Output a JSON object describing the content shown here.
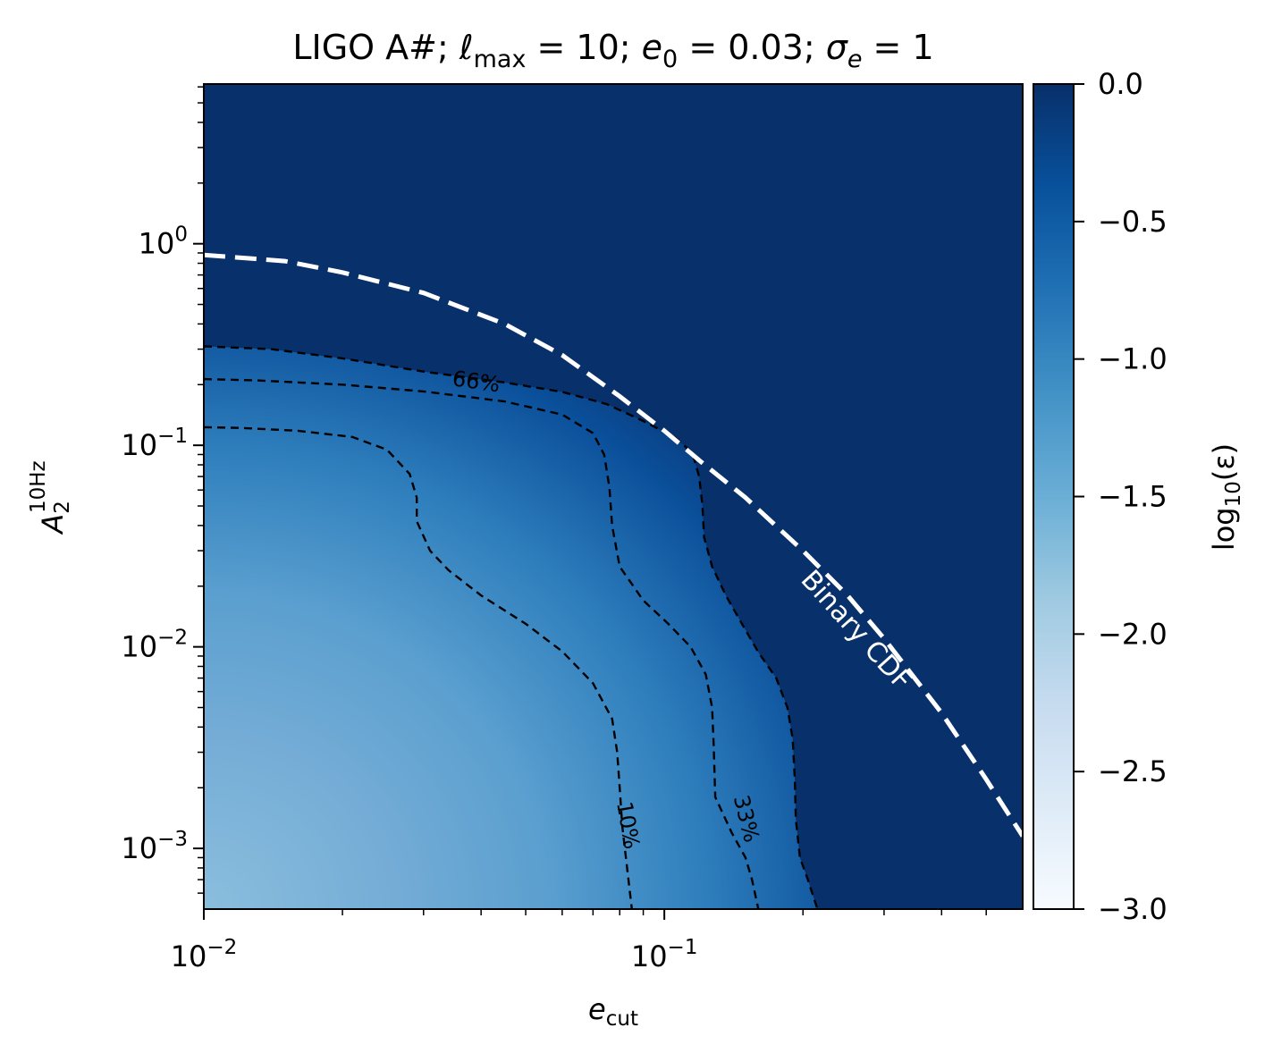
{
  "chart_data": {
    "type": "heatmap",
    "title": {
      "prefix": "LIGO A#; ",
      "ell": "ℓ",
      "lmax_sub": "max",
      "lmax_val": " = 10; ",
      "e": "e",
      "e0_sub": "0",
      "e0_val": " = 0.03; ",
      "sigma": "σ",
      "sigma_sub": "e",
      "sigma_val": " = 1"
    },
    "xlabel": {
      "main": "e",
      "sub": "cut"
    },
    "ylabel": {
      "main": "A",
      "sub": "2",
      "sup": "10Hz"
    },
    "xscale": "log",
    "yscale": "log",
    "xlim": [
      0.01,
      0.6
    ],
    "ylim": [
      0.0005,
      6.2
    ],
    "x_ticks": [
      {
        "value": 0.01,
        "base": "10",
        "exp": "−2"
      },
      {
        "value": 0.1,
        "base": "10",
        "exp": "−1"
      }
    ],
    "y_ticks": [
      {
        "value": 0.001,
        "base": "10",
        "exp": "−3"
      },
      {
        "value": 0.01,
        "base": "10",
        "exp": "−2"
      },
      {
        "value": 0.1,
        "base": "10",
        "exp": "−1"
      },
      {
        "value": 1,
        "base": "10",
        "exp": "0"
      }
    ],
    "colormap": "Blues",
    "colorbar": {
      "label": {
        "main": "log",
        "sub": "10",
        "arg": "(ε)"
      },
      "range": [
        -3.0,
        0.0
      ],
      "ticks": [
        {
          "value": 0.0,
          "label": "0.0"
        },
        {
          "value": -0.5,
          "label": "−0.5"
        },
        {
          "value": -1.0,
          "label": "−1.0"
        },
        {
          "value": -1.5,
          "label": "−1.5"
        },
        {
          "value": -2.0,
          "label": "−2.0"
        },
        {
          "value": -2.5,
          "label": "−2.5"
        },
        {
          "value": -3.0,
          "label": "−3.0"
        }
      ]
    },
    "contours": [
      {
        "label": "10%",
        "style": "dashed",
        "color": "#000000",
        "points": [
          [
            0.01,
            0.123
          ],
          [
            0.012,
            0.122
          ],
          [
            0.016,
            0.118
          ],
          [
            0.021,
            0.11
          ],
          [
            0.025,
            0.095
          ],
          [
            0.028,
            0.072
          ],
          [
            0.029,
            0.055
          ],
          [
            0.029,
            0.042
          ],
          [
            0.031,
            0.03
          ],
          [
            0.034,
            0.024
          ],
          [
            0.04,
            0.018
          ],
          [
            0.05,
            0.013
          ],
          [
            0.06,
            0.0095
          ],
          [
            0.07,
            0.0066
          ],
          [
            0.077,
            0.0044
          ],
          [
            0.079,
            0.003
          ],
          [
            0.08,
            0.002
          ],
          [
            0.081,
            0.0013
          ],
          [
            0.083,
            0.0008
          ],
          [
            0.085,
            0.0005
          ]
        ]
      },
      {
        "label": "33%",
        "style": "dashed",
        "color": "#000000",
        "points": [
          [
            0.01,
            0.213
          ],
          [
            0.013,
            0.21
          ],
          [
            0.02,
            0.2
          ],
          [
            0.03,
            0.185
          ],
          [
            0.045,
            0.165
          ],
          [
            0.06,
            0.142
          ],
          [
            0.07,
            0.115
          ],
          [
            0.074,
            0.09
          ],
          [
            0.076,
            0.062
          ],
          [
            0.077,
            0.04
          ],
          [
            0.08,
            0.025
          ],
          [
            0.09,
            0.017
          ],
          [
            0.102,
            0.013
          ],
          [
            0.114,
            0.01
          ],
          [
            0.123,
            0.0073
          ],
          [
            0.127,
            0.005
          ],
          [
            0.128,
            0.0032
          ],
          [
            0.129,
            0.0018
          ],
          [
            0.14,
            0.0012
          ],
          [
            0.15,
            0.0009
          ],
          [
            0.155,
            0.0007
          ],
          [
            0.16,
            0.0005
          ]
        ]
      },
      {
        "label": "66%",
        "style": "dashed",
        "color": "#000000",
        "points": [
          [
            0.01,
            0.31
          ],
          [
            0.014,
            0.3
          ],
          [
            0.02,
            0.27
          ],
          [
            0.03,
            0.232
          ],
          [
            0.045,
            0.205
          ],
          [
            0.06,
            0.184
          ],
          [
            0.075,
            0.16
          ],
          [
            0.09,
            0.132
          ],
          [
            0.105,
            0.11
          ],
          [
            0.115,
            0.092
          ],
          [
            0.119,
            0.07
          ],
          [
            0.121,
            0.05
          ],
          [
            0.122,
            0.035
          ],
          [
            0.127,
            0.025
          ],
          [
            0.136,
            0.018
          ],
          [
            0.148,
            0.0128
          ],
          [
            0.16,
            0.0094
          ],
          [
            0.175,
            0.007
          ],
          [
            0.185,
            0.005
          ],
          [
            0.19,
            0.0035
          ],
          [
            0.192,
            0.0022
          ],
          [
            0.193,
            0.0014
          ],
          [
            0.197,
            0.0009
          ],
          [
            0.205,
            0.0007
          ],
          [
            0.215,
            0.0005
          ]
        ]
      }
    ],
    "annotations": [
      {
        "text": "Binary CDF",
        "x": 0.26,
        "y": 0.012,
        "color": "#ffffff",
        "angle_deg": 48
      }
    ],
    "reference_curve": {
      "name": "Binary CDF",
      "style": "dashed",
      "color": "#ffffff",
      "points": [
        [
          0.01,
          0.88
        ],
        [
          0.015,
          0.82
        ],
        [
          0.02,
          0.72
        ],
        [
          0.03,
          0.57
        ],
        [
          0.045,
          0.4
        ],
        [
          0.06,
          0.28
        ],
        [
          0.08,
          0.175
        ],
        [
          0.1,
          0.118
        ],
        [
          0.12,
          0.083
        ],
        [
          0.15,
          0.055
        ],
        [
          0.2,
          0.03
        ],
        [
          0.25,
          0.018
        ],
        [
          0.3,
          0.011
        ],
        [
          0.4,
          0.0047
        ],
        [
          0.5,
          0.0022
        ],
        [
          0.6,
          0.00115
        ]
      ]
    },
    "grid": false
  }
}
